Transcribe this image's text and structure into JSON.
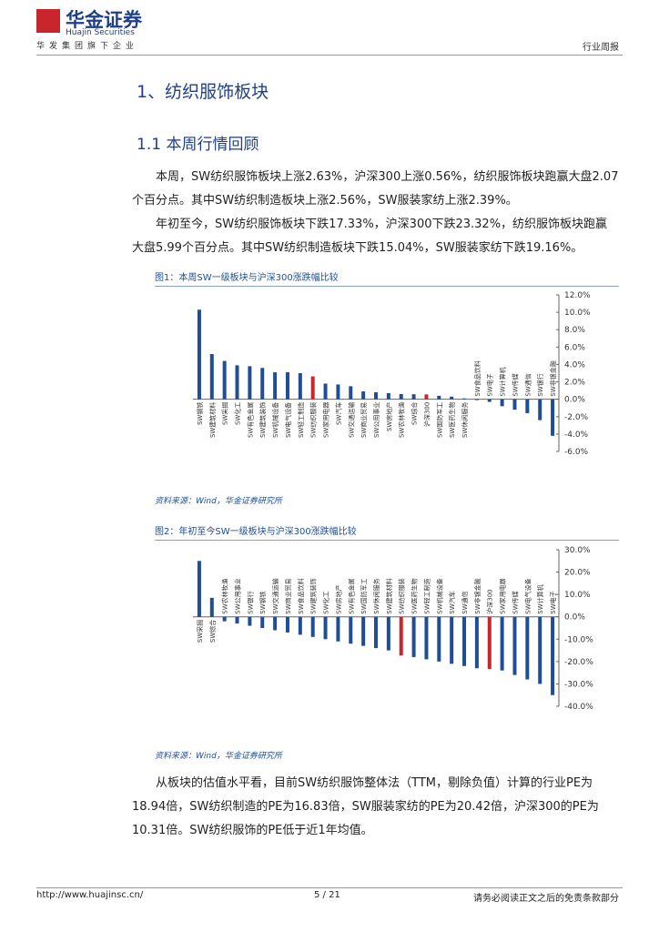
{
  "header": {
    "logo": "华金证券",
    "logo_en": "Huajin Securities",
    "tagline": "华发集团旗下企业",
    "report_type": "行业周报"
  },
  "section_title": "1、纺织服饰板块",
  "subsection_title": "1.1 本周行情回顾",
  "paragraphs": [
    "本周，SW纺织服饰板块上涨2.63%，沪深300上涨0.56%，纺织服饰板块跑赢大盘2.07个百分点。其中SW纺织制造板块上涨2.56%，SW服装家纺上涨2.39%。",
    "年初至今，SW纺织服饰板块下跌17.33%，沪深300下跌23.32%，纺织服饰板块跑赢大盘5.99个百分点。其中SW纺织制造板块下跌15.04%，SW服装家纺下跌19.16%。"
  ],
  "closing_paragraph": "从板块的估值水平看，目前SW纺织服饰整体法（TTM，剔除负值）计算的行业PE为18.94倍，SW纺织制造的PE为16.83倍，SW服装家纺的PE为20.42倍，沪深300的PE为10.31倍。SW纺织服饰的PE低于近1年均值。",
  "chart_data": [
    {
      "type": "bar",
      "title": "图1：本周SW一级板块与沪深300涨跌幅比较",
      "source": "资料来源：Wind，华金证券研究所",
      "categories": [
        "SW钢铁",
        "SW建筑材料",
        "SW采掘",
        "SW化工",
        "SW有色金属",
        "SW建筑装饰",
        "SW机械设备",
        "SW电气设备",
        "SW轻工制造",
        "SW纺织服装",
        "SW家用电器",
        "SW汽车",
        "SW交通运输",
        "SW商业贸易",
        "SW公用事业",
        "SW房地产",
        "SW农林牧渔",
        "SW综合",
        "沪深300",
        "SW国防军工",
        "SW医药生物",
        "SW休闲服务",
        "SW食品饮料",
        "SW电子",
        "SW计算机",
        "SW传媒",
        "SW通信",
        "SW银行",
        "SW非银金融"
      ],
      "values": [
        10.3,
        5.2,
        4.4,
        3.9,
        3.8,
        3.6,
        3.1,
        3.1,
        3.0,
        2.63,
        1.8,
        1.7,
        1.5,
        0.9,
        0.8,
        0.7,
        0.6,
        0.58,
        0.56,
        0.4,
        0.3,
        0.1,
        -0.1,
        -0.3,
        -0.8,
        -1.2,
        -1.6,
        -2.4,
        -4.2
      ],
      "color": "#1f4e96",
      "highlight_color": "#c8262c",
      "highlight": [
        9,
        18
      ],
      "ylim": [
        -6,
        12
      ],
      "yticks": [
        {
          "value": 12,
          "label": "12.0%"
        },
        {
          "value": 10,
          "label": "10.0%"
        },
        {
          "value": 8,
          "label": "8.0%"
        },
        {
          "value": 6,
          "label": "6.0%"
        },
        {
          "value": 4,
          "label": "4.0%"
        },
        {
          "value": 2,
          "label": "2.0%"
        },
        {
          "value": 0,
          "label": "0.0%"
        },
        {
          "value": -2,
          "label": "-2.0%"
        },
        {
          "value": -4,
          "label": "-4.0%"
        },
        {
          "value": -6,
          "label": "-6.0%"
        }
      ]
    },
    {
      "type": "bar",
      "title": "图2：年初至今SW一级板块与沪深300涨跌幅比较",
      "source": "资料来源：Wind，华金证券研究所",
      "categories": [
        "SW采掘",
        "SW综合",
        "SW农林牧渔",
        "SW公用事业",
        "SW银行",
        "SW钢铁",
        "SW交通运输",
        "SW商业贸易",
        "SW食品饮料",
        "SW建筑装饰",
        "SW化工",
        "SW房地产",
        "SW有色金属",
        "SW国防军工",
        "SW休闲服务",
        "SW建筑材料",
        "SW纺织服装",
        "SW医药生物",
        "SW轻工制造",
        "SW机械设备",
        "SW汽车",
        "SW通信",
        "SW非银金融",
        "沪深300",
        "SW家用电器",
        "SW传媒",
        "SW电气设备",
        "SW计算机",
        "SW电子"
      ],
      "values": [
        25,
        8.5,
        -2,
        -3,
        -4,
        -5,
        -6,
        -7,
        -8,
        -9,
        -10,
        -11,
        -12,
        -13,
        -14,
        -15,
        -17.33,
        -18,
        -19,
        -20,
        -21,
        -22,
        -23,
        -23.32,
        -24,
        -26,
        -28,
        -30,
        -35
      ],
      "color": "#1f4e96",
      "highlight_color": "#c8262c",
      "highlight": [
        16,
        23
      ],
      "ylim": [
        -40,
        30
      ],
      "yticks": [
        {
          "value": 30,
          "label": "30.0%"
        },
        {
          "value": 20,
          "label": "20.0%"
        },
        {
          "value": 10,
          "label": "10.0%"
        },
        {
          "value": 0,
          "label": "0.0%"
        },
        {
          "value": -10,
          "label": "-10.0%"
        },
        {
          "value": -20,
          "label": "-20.0%"
        },
        {
          "value": -30,
          "label": "-30.0%"
        },
        {
          "value": -40,
          "label": "-40.0%"
        }
      ]
    }
  ],
  "footer": {
    "url": "http://www.huajinsc.cn/",
    "page": "5 / 21",
    "disclaimer": "请务必阅读正文之后的免责条款部分"
  }
}
